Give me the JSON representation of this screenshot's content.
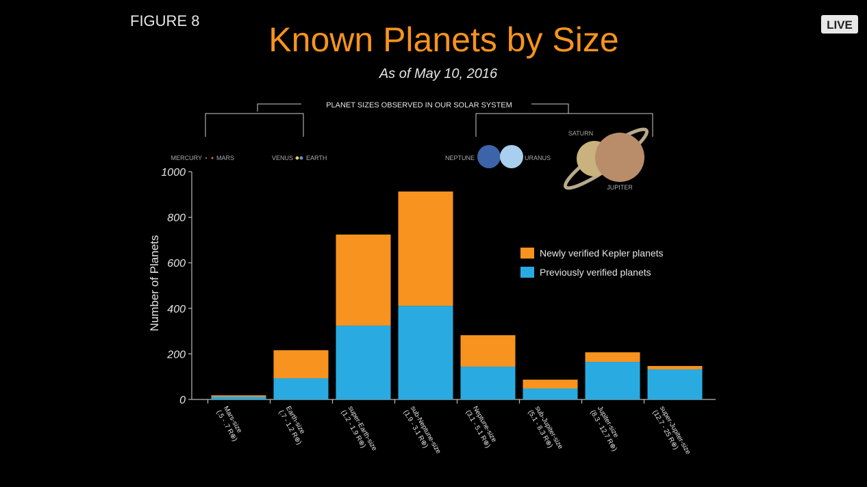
{
  "figure_label": "FIGURE 8",
  "live_badge": "LIVE",
  "solar_system": {
    "label": "PLANET SIZES OBSERVED IN OUR SOLAR SYSTEM",
    "planets": [
      "MERCURY",
      "MARS",
      "VENUS",
      "EARTH",
      "NEPTUNE",
      "URANUS",
      "SATURN",
      "JUPITER"
    ]
  },
  "chart_data": {
    "type": "stacked-bar",
    "title": "Known Planets by Size",
    "subtitle": "As of May 10, 2016",
    "y_label": "Number of Planets",
    "categories": [
      "Mars-size",
      "Earth-size",
      "super-Earth-size",
      "sub-Neptune-size",
      "Neptune-size",
      "sub-Jupiter-size",
      "Jupiter-size",
      "super-Jupiter-size"
    ],
    "category_ranges": [
      "(.5 - .7 R⊕)",
      "(.7 - 1.2 R⊕)",
      "(1.2 - 1.9 R⊕)",
      "(1.9 - 3.1 R⊕)",
      "(3.1 - 5.1 R⊕)",
      "(5.1 - 8.3 R⊕)",
      "(8.3 - 12.7 R⊕)",
      "(12.7 - 25 R⊕)"
    ],
    "series": [
      {
        "name": "Previously verified planets",
        "color": "#29abe2",
        "values": [
          12,
          93,
          324,
          411,
          144,
          48,
          165,
          132
        ]
      },
      {
        "name": "Newly verified Kepler planets",
        "color": "#f7931e",
        "values": [
          6,
          123,
          400,
          502,
          138,
          39,
          42,
          15
        ]
      }
    ],
    "ylim": [
      0,
      1000
    ],
    "yticks": [
      0,
      200,
      400,
      600,
      800,
      1000
    ]
  }
}
